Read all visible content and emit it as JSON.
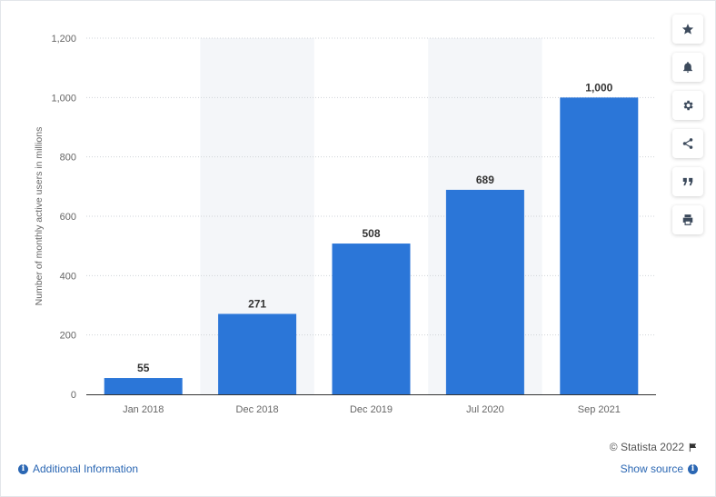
{
  "chart_data": {
    "type": "bar",
    "categories": [
      "Jan 2018",
      "Dec 2018",
      "Dec 2019",
      "Jul 2020",
      "Sep 2021"
    ],
    "values": [
      55,
      271,
      508,
      689,
      1000
    ],
    "value_labels": [
      "55",
      "271",
      "508",
      "689",
      "1,000"
    ],
    "ylabel": "Number of monthly active users in millions",
    "ylim": [
      0,
      1200
    ],
    "yticks": [
      0,
      200,
      400,
      600,
      800,
      1000,
      1200
    ],
    "ytick_labels": [
      "0",
      "200",
      "400",
      "600",
      "800",
      "1,000",
      "1,200"
    ],
    "grid": true,
    "bar_color": "#2b76d8",
    "alternate_band_color": "#f4f6f9"
  },
  "toolbar": {
    "buttons": [
      {
        "name": "star-icon"
      },
      {
        "name": "bell-icon"
      },
      {
        "name": "gear-icon"
      },
      {
        "name": "share-icon"
      },
      {
        "name": "quote-icon"
      },
      {
        "name": "print-icon"
      }
    ]
  },
  "footer": {
    "copyright": "© Statista 2022",
    "additional_info": "Additional Information",
    "show_source": "Show source"
  }
}
